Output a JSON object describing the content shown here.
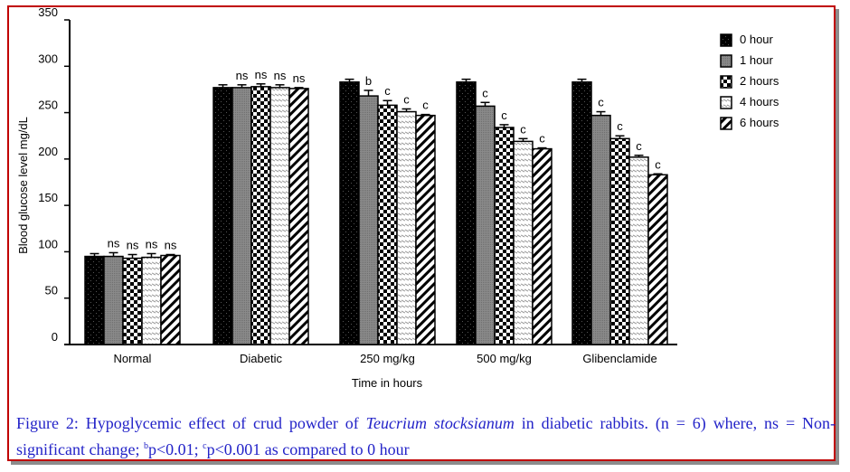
{
  "chart_data": {
    "type": "bar",
    "title": "",
    "xlabel": "Time in hours",
    "ylabel": "Blood glucose level  mg/dL",
    "ylim": [
      0,
      350
    ],
    "yticks": [
      0,
      50,
      100,
      150,
      200,
      250,
      300,
      350
    ],
    "grid": false,
    "legend_position": "top-right",
    "categories": [
      "Normal",
      "Diabetic",
      "250 mg/kg",
      "500 mg/kg",
      "Glibenclamide"
    ],
    "series": [
      {
        "name": "0 hour",
        "fill": "black-dotted",
        "values": [
          95,
          277,
          283,
          283,
          283
        ],
        "errors": [
          3,
          3,
          3,
          3,
          3
        ],
        "labels": [
          "",
          "",
          "",
          "",
          ""
        ]
      },
      {
        "name": "1 hour",
        "fill": "grey",
        "values": [
          95,
          277,
          268,
          257,
          247
        ],
        "errors": [
          4,
          3,
          6,
          4,
          4
        ],
        "labels": [
          "ns",
          "ns",
          "b",
          "c",
          "c"
        ]
      },
      {
        "name": "2 hours",
        "fill": "checkerboard",
        "values": [
          93,
          278,
          258,
          234,
          222
        ],
        "errors": [
          4,
          3,
          5,
          3,
          3
        ],
        "labels": [
          "ns",
          "ns",
          "c",
          "c",
          "c"
        ]
      },
      {
        "name": "4 hours",
        "fill": "light-hatch",
        "values": [
          94,
          277,
          251,
          219,
          202
        ],
        "errors": [
          4,
          3,
          3,
          3,
          2
        ],
        "labels": [
          "ns",
          "ns",
          "c",
          "c",
          "c"
        ]
      },
      {
        "name": "6 hours",
        "fill": "diagonal-stripes",
        "values": [
          96,
          276,
          247,
          211,
          183
        ],
        "errors": [
          1,
          1,
          1,
          1,
          1
        ],
        "labels": [
          "ns",
          "ns",
          "c",
          "c",
          "c"
        ]
      }
    ]
  },
  "caption": {
    "part1": "Figure 2: Hypoglycemic effect of crud powder of ",
    "species": "Teucrium stocksianum",
    "part2": " in diabetic rabbits. (n = 6) where, ns = Non-significant change; ",
    "b_sup": "b",
    "b_text": "p<0.01; ",
    "c_sup": "c",
    "c_text": "p<0.001 as compared to 0 hour"
  },
  "colors": {
    "border": "#c00000",
    "caption": "#2323c8"
  }
}
